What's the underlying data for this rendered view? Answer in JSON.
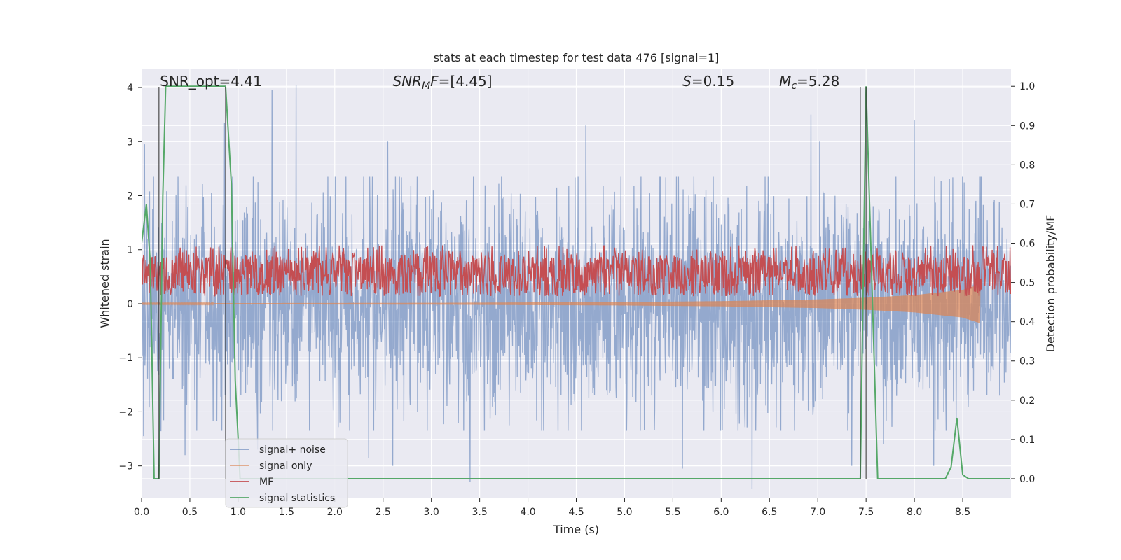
{
  "chart_data": {
    "type": "line",
    "title": "stats at each timestep for test data 476 [signal=1]",
    "xlabel": "Time (s)",
    "ylabel": "Whitened strain",
    "ylabel_right": "Detection probability/MF",
    "xlim": [
      0,
      9.0
    ],
    "ylim": [
      -3.6,
      4.35
    ],
    "ylim_right": [
      -0.05,
      1.045
    ],
    "x_ticks": [
      0.0,
      0.5,
      1.0,
      1.5,
      2.0,
      2.5,
      3.0,
      3.5,
      4.0,
      4.5,
      5.0,
      5.5,
      6.0,
      6.5,
      7.0,
      7.5,
      8.0,
      8.5
    ],
    "x_tick_labels": [
      "0.0",
      "0.5",
      "1.0",
      "1.5",
      "2.0",
      "2.5",
      "3.0",
      "3.5",
      "4.0",
      "4.5",
      "5.0",
      "5.5",
      "6.0",
      "6.5",
      "7.0",
      "7.5",
      "8.0",
      "8.5"
    ],
    "y_ticks": [
      -3,
      -2,
      -1,
      0,
      1,
      2,
      3,
      4
    ],
    "y_tick_labels": [
      "−3",
      "−2",
      "−1",
      "0",
      "1",
      "2",
      "3",
      "4"
    ],
    "y_ticks_right": [
      0.0,
      0.1,
      0.2,
      0.3,
      0.4,
      0.5,
      0.6,
      0.7,
      0.8,
      0.9,
      1.0
    ],
    "y_tick_labels_right": [
      "0.0",
      "0.1",
      "0.2",
      "0.3",
      "0.4",
      "0.5",
      "0.6",
      "0.7",
      "0.8",
      "0.9",
      "1.0"
    ],
    "annotations": [
      {
        "key": "snr_opt",
        "text": "SNR_opt=4.41",
        "x": 0.19
      },
      {
        "key": "snr_mf",
        "text": "SNR_MF=[4.45]",
        "x": 2.6
      },
      {
        "key": "s",
        "text": "S=0.15",
        "x": 5.6
      },
      {
        "key": "mc",
        "text": "M_c=5.28",
        "x": 6.6
      }
    ],
    "vertical_lines": [
      0.18,
      0.87,
      7.44,
      7.5
    ],
    "series": [
      {
        "name": "signal+ noise",
        "color": "#4c72b0",
        "style": "noise",
        "x_range": [
          0.0,
          9.0
        ],
        "typical_amplitude": 1.0,
        "peaks": [
          {
            "x": 0.03,
            "y": 2.95
          },
          {
            "x": 0.86,
            "y": 3.35
          },
          {
            "x": 1.35,
            "y": 3.95
          },
          {
            "x": 1.6,
            "y": 4.05
          },
          {
            "x": 2.55,
            "y": 3.0
          },
          {
            "x": 6.93,
            "y": 3.5
          },
          {
            "x": 7.02,
            "y": 3.0
          },
          {
            "x": 8.0,
            "y": 3.4
          },
          {
            "x": 4.6,
            "y": 3.3
          },
          {
            "x": 0.02,
            "y": -2.45
          },
          {
            "x": 0.45,
            "y": -2.8
          },
          {
            "x": 2.35,
            "y": -2.85
          },
          {
            "x": 3.4,
            "y": -3.3
          },
          {
            "x": 6.32,
            "y": -3.42
          },
          {
            "x": 5.6,
            "y": -3.05
          },
          {
            "x": 7.35,
            "y": -3.0
          },
          {
            "x": 8.2,
            "y": -3.0
          },
          {
            "x": 7.68,
            "y": -2.6
          },
          {
            "x": 2.6,
            "y": -3.0
          },
          {
            "x": 1.2,
            "y": -2.7
          }
        ]
      },
      {
        "name": "signal only",
        "color": "#dd8452",
        "style": "chirp",
        "x_range": [
          0.0,
          8.68
        ],
        "amplitude_points": [
          [
            0.0,
            0.01
          ],
          [
            3.0,
            0.02
          ],
          [
            5.0,
            0.04
          ],
          [
            6.0,
            0.06
          ],
          [
            7.0,
            0.1
          ],
          [
            7.5,
            0.14
          ],
          [
            8.0,
            0.2
          ],
          [
            8.5,
            0.32
          ],
          [
            8.68,
            0.45
          ]
        ]
      },
      {
        "name": "MF",
        "color": "#c44e52",
        "style": "band",
        "axis": "right",
        "x_range": [
          0.0,
          9.0
        ],
        "band_range": [
          0.465,
          0.595
        ]
      },
      {
        "name": "signal statistics",
        "color": "#55a868",
        "axis": "right",
        "style": "line",
        "x": [
          0.0,
          0.05,
          0.09,
          0.13,
          0.18,
          0.22,
          0.25,
          0.87,
          0.93,
          0.97,
          1.02,
          1.05,
          7.44,
          7.5,
          7.62,
          8.32,
          8.38,
          8.44,
          8.5,
          8.56,
          8.99
        ],
        "y": [
          0.6,
          0.7,
          0.55,
          0.0,
          0.0,
          0.72,
          1.0,
          1.0,
          0.75,
          0.25,
          0.0,
          0.0,
          0.0,
          1.0,
          0.0,
          0.0,
          0.03,
          0.155,
          0.01,
          0.0,
          0.0
        ]
      }
    ],
    "legend": {
      "position": "lower-left"
    },
    "grid": true
  }
}
